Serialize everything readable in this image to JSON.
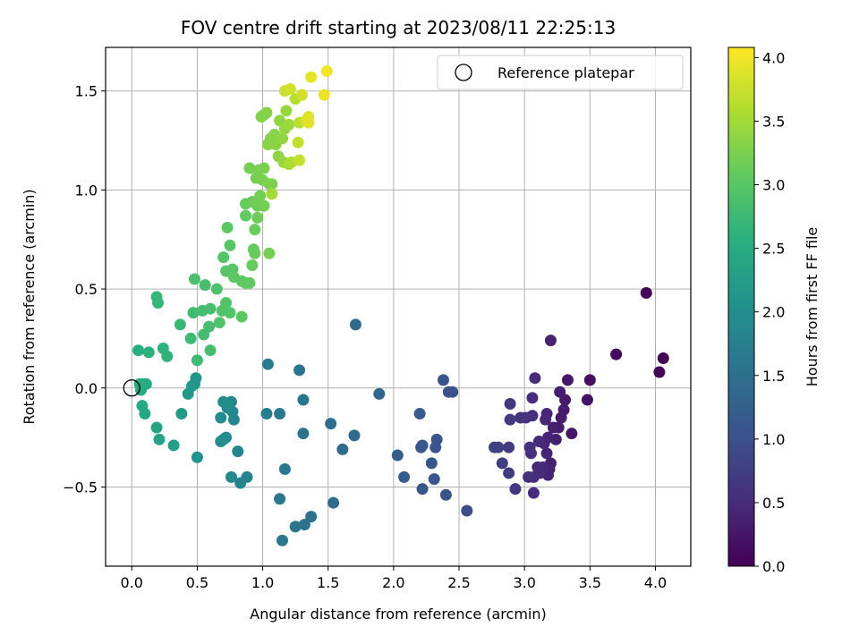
{
  "chart_data": {
    "type": "scatter",
    "title": "FOV centre drift starting at 2023/08/11 22:25:13",
    "xlabel": "Angular distance from reference (arcmin)",
    "ylabel": "Rotation from reference (arcmin)",
    "xlim": [
      -0.2,
      4.27
    ],
    "ylim": [
      -0.9,
      1.72
    ],
    "xticks": [
      0.0,
      0.5,
      1.0,
      1.5,
      2.0,
      2.5,
      3.0,
      3.5,
      4.0
    ],
    "xtick_labels": [
      "0.0",
      "0.5",
      "1.0",
      "1.5",
      "2.0",
      "2.5",
      "3.0",
      "3.5",
      "4.0"
    ],
    "yticks": [
      -0.5,
      0.0,
      0.5,
      1.0,
      1.5
    ],
    "ytick_labels": [
      "−0.5",
      "0.0",
      "0.5",
      "1.0",
      "1.5"
    ],
    "grid": true,
    "legend": {
      "position": "upper-right",
      "label": "Reference platepar"
    },
    "reference_point": {
      "x": 0.0,
      "y": 0.0
    },
    "colorbar": {
      "label": "Hours from first FF file",
      "colormap": "viridis",
      "range": [
        0.0,
        4.08
      ],
      "ticks": [
        0.0,
        0.5,
        1.0,
        1.5,
        2.0,
        2.5,
        3.0,
        3.5,
        4.0
      ],
      "tick_labels": [
        "0.0",
        "0.5",
        "1.0",
        "1.5",
        "2.0",
        "2.5",
        "3.0",
        "3.5",
        "4.0"
      ]
    },
    "points": [
      {
        "x": 4.06,
        "y": 0.15,
        "c": 0.0
      },
      {
        "x": 4.03,
        "y": 0.08,
        "c": 0.03
      },
      {
        "x": 3.93,
        "y": 0.48,
        "c": 0.05
      },
      {
        "x": 3.7,
        "y": 0.17,
        "c": 0.1
      },
      {
        "x": 3.5,
        "y": 0.04,
        "c": 0.16
      },
      {
        "x": 3.48,
        "y": -0.06,
        "c": 0.18
      },
      {
        "x": 3.36,
        "y": -0.23,
        "c": 0.25
      },
      {
        "x": 3.33,
        "y": 0.04,
        "c": 0.27
      },
      {
        "x": 3.31,
        "y": -0.06,
        "c": 0.28
      },
      {
        "x": 3.3,
        "y": -0.11,
        "c": 0.3
      },
      {
        "x": 3.28,
        "y": -0.15,
        "c": 0.31
      },
      {
        "x": 3.27,
        "y": -0.02,
        "c": 0.32
      },
      {
        "x": 3.26,
        "y": -0.2,
        "c": 0.33
      },
      {
        "x": 3.24,
        "y": -0.26,
        "c": 0.35
      },
      {
        "x": 3.22,
        "y": -0.2,
        "c": 0.36
      },
      {
        "x": 3.2,
        "y": -0.38,
        "c": 0.37
      },
      {
        "x": 3.2,
        "y": 0.24,
        "c": 0.38
      },
      {
        "x": 3.19,
        "y": -0.41,
        "c": 0.39
      },
      {
        "x": 3.18,
        "y": -0.25,
        "c": 0.4
      },
      {
        "x": 3.18,
        "y": -0.44,
        "c": 0.41
      },
      {
        "x": 3.17,
        "y": -0.33,
        "c": 0.42
      },
      {
        "x": 3.17,
        "y": -0.13,
        "c": 0.43
      },
      {
        "x": 3.16,
        "y": -0.16,
        "c": 0.44
      },
      {
        "x": 3.15,
        "y": -0.28,
        "c": 0.45
      },
      {
        "x": 3.14,
        "y": -0.4,
        "c": 0.46
      },
      {
        "x": 3.12,
        "y": -0.43,
        "c": 0.47
      },
      {
        "x": 3.11,
        "y": -0.27,
        "c": 0.48
      },
      {
        "x": 3.1,
        "y": -0.4,
        "c": 0.49
      },
      {
        "x": 3.08,
        "y": 0.05,
        "c": 0.5
      },
      {
        "x": 3.07,
        "y": -0.53,
        "c": 0.51
      },
      {
        "x": 3.07,
        "y": -0.45,
        "c": 0.52
      },
      {
        "x": 3.06,
        "y": -0.05,
        "c": 0.53
      },
      {
        "x": 3.06,
        "y": -0.14,
        "c": 0.54
      },
      {
        "x": 3.05,
        "y": -0.33,
        "c": 0.55
      },
      {
        "x": 3.04,
        "y": -0.3,
        "c": 0.56
      },
      {
        "x": 3.03,
        "y": -0.45,
        "c": 0.57
      },
      {
        "x": 3.01,
        "y": -0.15,
        "c": 0.58
      },
      {
        "x": 2.97,
        "y": -0.15,
        "c": 0.62
      },
      {
        "x": 2.93,
        "y": -0.51,
        "c": 0.65
      },
      {
        "x": 2.89,
        "y": -0.08,
        "c": 0.68
      },
      {
        "x": 2.89,
        "y": -0.16,
        "c": 0.69
      },
      {
        "x": 2.88,
        "y": -0.3,
        "c": 0.7
      },
      {
        "x": 2.88,
        "y": -0.43,
        "c": 0.71
      },
      {
        "x": 2.83,
        "y": -0.38,
        "c": 0.75
      },
      {
        "x": 2.8,
        "y": -0.3,
        "c": 0.77
      },
      {
        "x": 2.77,
        "y": -0.3,
        "c": 0.79
      },
      {
        "x": 2.56,
        "y": -0.62,
        "c": 0.95
      },
      {
        "x": 2.45,
        "y": -0.02,
        "c": 1.0
      },
      {
        "x": 2.42,
        "y": -0.02,
        "c": 1.02
      },
      {
        "x": 2.4,
        "y": -0.54,
        "c": 1.03
      },
      {
        "x": 2.38,
        "y": 0.04,
        "c": 1.04
      },
      {
        "x": 2.33,
        "y": -0.26,
        "c": 1.06
      },
      {
        "x": 2.32,
        "y": -0.3,
        "c": 1.07
      },
      {
        "x": 2.31,
        "y": -0.46,
        "c": 1.08
      },
      {
        "x": 2.29,
        "y": -0.38,
        "c": 1.09
      },
      {
        "x": 2.22,
        "y": -0.51,
        "c": 1.12
      },
      {
        "x": 2.22,
        "y": -0.29,
        "c": 1.12
      },
      {
        "x": 2.21,
        "y": -0.3,
        "c": 1.13
      },
      {
        "x": 2.2,
        "y": -0.13,
        "c": 1.14
      },
      {
        "x": 2.08,
        "y": -0.45,
        "c": 1.18
      },
      {
        "x": 2.03,
        "y": -0.34,
        "c": 1.2
      },
      {
        "x": 1.89,
        "y": -0.03,
        "c": 1.35
      },
      {
        "x": 1.71,
        "y": 0.32,
        "c": 1.38
      },
      {
        "x": 1.7,
        "y": -0.24,
        "c": 1.4
      },
      {
        "x": 1.61,
        "y": -0.31,
        "c": 1.42
      },
      {
        "x": 1.54,
        "y": -0.58,
        "c": 1.44
      },
      {
        "x": 1.52,
        "y": -0.18,
        "c": 1.45
      },
      {
        "x": 1.37,
        "y": -0.65,
        "c": 1.5
      },
      {
        "x": 1.32,
        "y": -0.69,
        "c": 1.52
      },
      {
        "x": 1.31,
        "y": -0.06,
        "c": 1.54
      },
      {
        "x": 1.31,
        "y": -0.23,
        "c": 1.55
      },
      {
        "x": 1.28,
        "y": 0.09,
        "c": 1.56
      },
      {
        "x": 1.25,
        "y": -0.7,
        "c": 1.57
      },
      {
        "x": 1.17,
        "y": -0.41,
        "c": 1.6
      },
      {
        "x": 1.15,
        "y": -0.77,
        "c": 1.62
      },
      {
        "x": 1.13,
        "y": -0.56,
        "c": 1.63
      },
      {
        "x": 1.13,
        "y": -0.13,
        "c": 1.65
      },
      {
        "x": 1.04,
        "y": 0.12,
        "c": 1.7
      },
      {
        "x": 1.03,
        "y": -0.13,
        "c": 1.71
      },
      {
        "x": 0.88,
        "y": -0.45,
        "c": 1.8
      },
      {
        "x": 0.83,
        "y": -0.48,
        "c": 1.83
      },
      {
        "x": 0.81,
        "y": -0.32,
        "c": 1.85
      },
      {
        "x": 0.78,
        "y": -0.16,
        "c": 1.87
      },
      {
        "x": 0.77,
        "y": -0.12,
        "c": 1.88
      },
      {
        "x": 0.76,
        "y": -0.07,
        "c": 1.89
      },
      {
        "x": 0.76,
        "y": -0.45,
        "c": 1.9
      },
      {
        "x": 0.73,
        "y": -0.1,
        "c": 1.92
      },
      {
        "x": 0.72,
        "y": -0.25,
        "c": 1.93
      },
      {
        "x": 0.7,
        "y": -0.26,
        "c": 1.94
      },
      {
        "x": 0.7,
        "y": -0.07,
        "c": 1.95
      },
      {
        "x": 0.68,
        "y": -0.15,
        "c": 1.96
      },
      {
        "x": 0.68,
        "y": -0.27,
        "c": 1.97
      },
      {
        "x": 0.5,
        "y": -0.35,
        "c": 2.05
      },
      {
        "x": 0.49,
        "y": 0.05,
        "c": 2.1
      },
      {
        "x": 0.48,
        "y": 0.02,
        "c": 2.12
      },
      {
        "x": 0.46,
        "y": 0.01,
        "c": 2.14
      },
      {
        "x": 0.43,
        "y": -0.03,
        "c": 2.16
      },
      {
        "x": 0.38,
        "y": -0.13,
        "c": 2.2
      },
      {
        "x": 0.32,
        "y": -0.29,
        "c": 2.26
      },
      {
        "x": 0.21,
        "y": -0.26,
        "c": 2.35
      },
      {
        "x": 0.19,
        "y": -0.2,
        "c": 2.37
      },
      {
        "x": 0.1,
        "y": -0.13,
        "c": 2.44
      },
      {
        "x": 0.08,
        "y": -0.09,
        "c": 2.46
      },
      {
        "x": 0.07,
        "y": -0.01,
        "c": 2.48
      },
      {
        "x": 0.06,
        "y": 0.02,
        "c": 2.49
      },
      {
        "x": 0.08,
        "y": 0.02,
        "c": 2.5
      },
      {
        "x": 0.11,
        "y": 0.02,
        "c": 2.52
      },
      {
        "x": 0.05,
        "y": 0.19,
        "c": 2.55
      },
      {
        "x": 0.13,
        "y": 0.18,
        "c": 2.58
      },
      {
        "x": 0.24,
        "y": 0.2,
        "c": 2.62
      },
      {
        "x": 0.27,
        "y": 0.16,
        "c": 2.65
      },
      {
        "x": 0.2,
        "y": 0.43,
        "c": 2.68
      },
      {
        "x": 0.19,
        "y": 0.46,
        "c": 2.7
      },
      {
        "x": 0.37,
        "y": 0.32,
        "c": 2.73
      },
      {
        "x": 0.45,
        "y": 0.25,
        "c": 2.75
      },
      {
        "x": 0.5,
        "y": 0.14,
        "c": 2.77
      },
      {
        "x": 0.47,
        "y": 0.38,
        "c": 2.79
      },
      {
        "x": 0.54,
        "y": 0.39,
        "c": 2.81
      },
      {
        "x": 0.55,
        "y": 0.27,
        "c": 2.82
      },
      {
        "x": 0.59,
        "y": 0.31,
        "c": 2.83
      },
      {
        "x": 0.6,
        "y": 0.19,
        "c": 2.84
      },
      {
        "x": 0.6,
        "y": 0.4,
        "c": 2.85
      },
      {
        "x": 0.56,
        "y": 0.52,
        "c": 2.86
      },
      {
        "x": 0.48,
        "y": 0.55,
        "c": 2.88
      },
      {
        "x": 0.65,
        "y": 0.5,
        "c": 2.9
      },
      {
        "x": 0.67,
        "y": 0.33,
        "c": 2.92
      },
      {
        "x": 0.69,
        "y": 0.39,
        "c": 2.93
      },
      {
        "x": 0.72,
        "y": 0.43,
        "c": 2.95
      },
      {
        "x": 0.75,
        "y": 0.38,
        "c": 2.96
      },
      {
        "x": 0.7,
        "y": 0.66,
        "c": 2.97
      },
      {
        "x": 0.72,
        "y": 0.59,
        "c": 2.98
      },
      {
        "x": 0.77,
        "y": 0.6,
        "c": 3.0
      },
      {
        "x": 0.75,
        "y": 0.72,
        "c": 3.01
      },
      {
        "x": 0.73,
        "y": 0.81,
        "c": 3.02
      },
      {
        "x": 0.84,
        "y": 0.36,
        "c": 3.03
      },
      {
        "x": 0.78,
        "y": 0.56,
        "c": 3.04
      },
      {
        "x": 0.84,
        "y": 0.54,
        "c": 3.05
      },
      {
        "x": 0.87,
        "y": 0.53,
        "c": 3.06
      },
      {
        "x": 0.9,
        "y": 0.53,
        "c": 3.07
      },
      {
        "x": 0.87,
        "y": 0.87,
        "c": 3.08
      },
      {
        "x": 0.87,
        "y": 0.93,
        "c": 3.09
      },
      {
        "x": 0.93,
        "y": 0.7,
        "c": 3.1
      },
      {
        "x": 0.92,
        "y": 0.62,
        "c": 3.11
      },
      {
        "x": 0.94,
        "y": 0.68,
        "c": 3.12
      },
      {
        "x": 0.94,
        "y": 0.8,
        "c": 3.13
      },
      {
        "x": 0.92,
        "y": 0.94,
        "c": 3.15
      },
      {
        "x": 0.96,
        "y": 0.86,
        "c": 3.16
      },
      {
        "x": 0.96,
        "y": 0.92,
        "c": 3.17
      },
      {
        "x": 0.98,
        "y": 0.97,
        "c": 3.18
      },
      {
        "x": 1.01,
        "y": 0.92,
        "c": 3.19
      },
      {
        "x": 1.05,
        "y": 0.68,
        "c": 3.2
      },
      {
        "x": 0.9,
        "y": 1.11,
        "c": 3.21
      },
      {
        "x": 0.95,
        "y": 1.06,
        "c": 3.22
      },
      {
        "x": 0.97,
        "y": 1.1,
        "c": 3.23
      },
      {
        "x": 1.0,
        "y": 1.05,
        "c": 3.24
      },
      {
        "x": 1.01,
        "y": 1.11,
        "c": 3.25
      },
      {
        "x": 1.05,
        "y": 1.03,
        "c": 3.26
      },
      {
        "x": 1.07,
        "y": 1.03,
        "c": 3.27
      },
      {
        "x": 0.99,
        "y": 1.37,
        "c": 3.29
      },
      {
        "x": 1.01,
        "y": 1.38,
        "c": 3.3
      },
      {
        "x": 1.03,
        "y": 1.39,
        "c": 3.31
      },
      {
        "x": 1.06,
        "y": 1.26,
        "c": 3.32
      },
      {
        "x": 1.09,
        "y": 1.28,
        "c": 3.33
      },
      {
        "x": 1.04,
        "y": 1.23,
        "c": 3.34
      },
      {
        "x": 1.1,
        "y": 1.23,
        "c": 3.35
      },
      {
        "x": 1.12,
        "y": 1.17,
        "c": 3.36
      },
      {
        "x": 1.13,
        "y": 1.35,
        "c": 3.37
      },
      {
        "x": 1.15,
        "y": 1.26,
        "c": 3.38
      },
      {
        "x": 1.17,
        "y": 1.31,
        "c": 3.4
      },
      {
        "x": 1.16,
        "y": 1.14,
        "c": 3.42
      },
      {
        "x": 1.18,
        "y": 1.4,
        "c": 3.43
      },
      {
        "x": 1.2,
        "y": 1.33,
        "c": 3.45
      },
      {
        "x": 1.07,
        "y": 0.98,
        "c": 3.5
      },
      {
        "x": 1.2,
        "y": 1.13,
        "c": 3.55
      },
      {
        "x": 1.22,
        "y": 1.14,
        "c": 3.58
      },
      {
        "x": 1.25,
        "y": 1.46,
        "c": 3.62
      },
      {
        "x": 1.28,
        "y": 1.34,
        "c": 3.66
      },
      {
        "x": 1.27,
        "y": 1.24,
        "c": 3.7
      },
      {
        "x": 1.28,
        "y": 1.15,
        "c": 3.72
      },
      {
        "x": 1.17,
        "y": 1.5,
        "c": 3.75
      },
      {
        "x": 1.21,
        "y": 1.51,
        "c": 3.78
      },
      {
        "x": 1.3,
        "y": 1.48,
        "c": 3.8
      },
      {
        "x": 1.33,
        "y": 1.35,
        "c": 3.85
      },
      {
        "x": 1.35,
        "y": 1.37,
        "c": 3.88
      },
      {
        "x": 1.35,
        "y": 1.34,
        "c": 3.9
      },
      {
        "x": 1.37,
        "y": 1.57,
        "c": 3.93
      },
      {
        "x": 1.47,
        "y": 1.48,
        "c": 3.96
      },
      {
        "x": 1.49,
        "y": 1.6,
        "c": 4.0
      }
    ]
  }
}
